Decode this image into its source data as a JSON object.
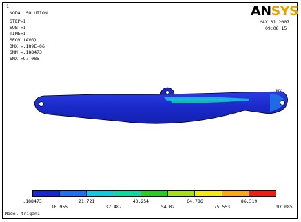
{
  "corner_mark": "1",
  "info": {
    "title": "NODAL SOLUTION",
    "step": "STEP=1",
    "sub": "SUB =1",
    "time": "TIME=1",
    "seqv": "SEQV     (AVG)",
    "dmx": "DMX =.189E-06",
    "smn": "SMN =.188473",
    "smx": "SMX =97.085"
  },
  "logo": {
    "ans": "AN",
    "sys": "SYS"
  },
  "date": {
    "line1": "MAY 31 2007",
    "line2": "09:08:15"
  },
  "mx_label": "MX",
  "footer_label": "Model trigan1",
  "legend": {
    "colors": [
      "#1a28c8",
      "#1f72e8",
      "#16c8e0",
      "#10d8a0",
      "#2ccc24",
      "#a8e018",
      "#f0e818",
      "#f5a818",
      "#e82018"
    ],
    "top_labels": [
      ".188473",
      "21.721",
      "43.254",
      "64.786",
      "86.319"
    ],
    "bottom_labels": [
      "10.955",
      "32.487",
      "54.02",
      "75.553",
      "97.085"
    ]
  }
}
